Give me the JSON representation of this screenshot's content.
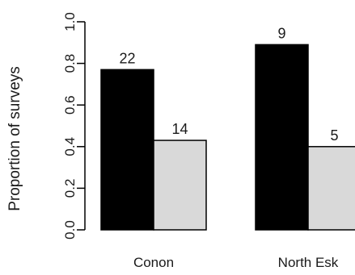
{
  "chart_data": {
    "type": "bar",
    "ylabel": "Proportion of surveys",
    "xlabel": "",
    "ylim": [
      0,
      1.0
    ],
    "yticks": [
      "0.0",
      "0.2",
      "0.4",
      "0.6",
      "0.8",
      "1.0"
    ],
    "categories": [
      "Conon",
      "North Esk"
    ],
    "grid": false,
    "legend": "none",
    "series": [
      {
        "color": "#000000",
        "values": [
          0.77,
          0.89
        ],
        "labels": [
          "22",
          "9"
        ]
      },
      {
        "color": "#d9d9d9",
        "values": [
          0.43,
          0.4
        ],
        "labels": [
          "14",
          "5"
        ]
      }
    ]
  }
}
